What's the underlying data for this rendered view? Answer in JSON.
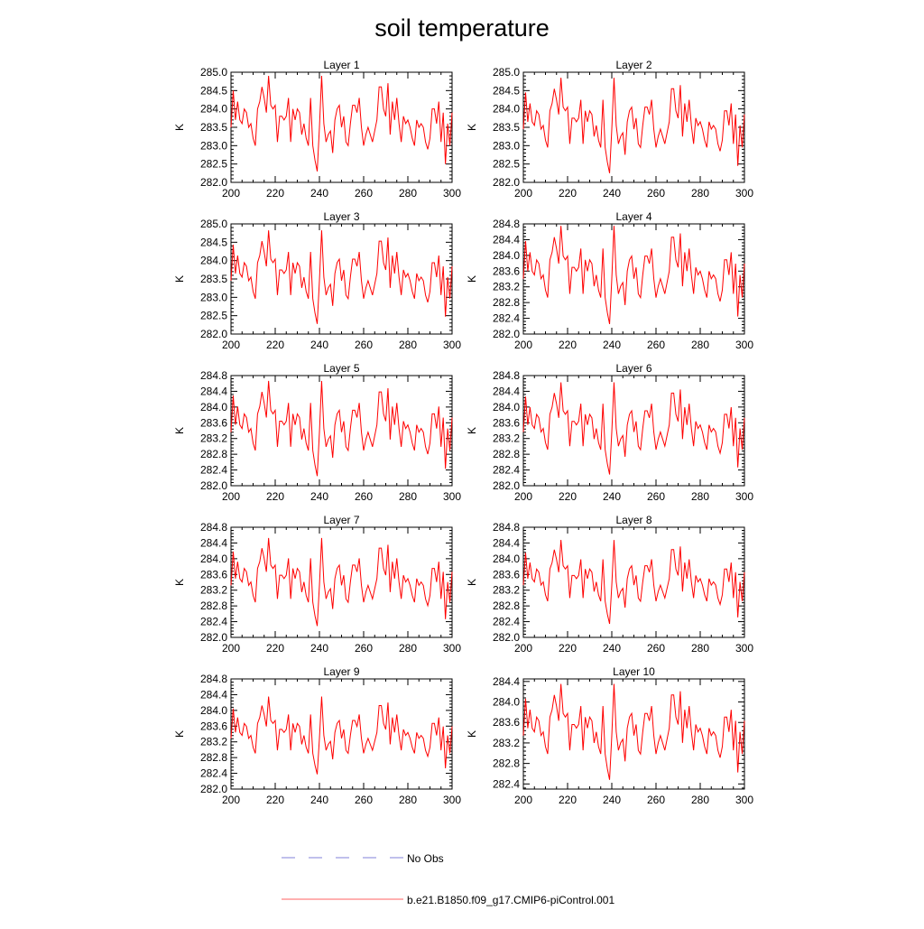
{
  "chart_data": {
    "type": "line",
    "title": "soil temperature",
    "xlabel": "",
    "ylabel": "K",
    "xlim": [
      200,
      300
    ],
    "x_ticks": [
      200,
      220,
      240,
      260,
      280,
      300
    ],
    "x_start": 200,
    "line_color": "#ff0000",
    "obs_color": "#8080d8",
    "base_series": [
      283.5,
      284.5,
      283.7,
      284.2,
      283.7,
      283.6,
      284.0,
      283.9,
      283.5,
      283.6,
      283.2,
      283.0,
      284.0,
      284.2,
      284.6,
      284.3,
      283.9,
      284.9,
      284.1,
      284.0,
      284.1,
      283.1,
      283.8,
      283.8,
      283.7,
      283.8,
      284.3,
      283.1,
      284.0,
      283.7,
      284.0,
      283.9,
      283.3,
      283.6,
      283.2,
      283.0,
      284.3,
      283.0,
      282.6,
      282.3,
      283.5,
      284.9,
      283.6,
      283.1,
      283.3,
      283.4,
      282.8,
      283.7,
      284.0,
      284.1,
      283.5,
      283.8,
      283.1,
      283.0,
      283.6,
      284.1,
      284.1,
      283.9,
      284.3,
      283.5,
      283.0,
      283.3,
      283.5,
      283.3,
      283.1,
      283.4,
      283.7,
      284.6,
      284.6,
      284.0,
      283.8,
      284.7,
      283.3,
      284.2,
      283.7,
      284.3,
      283.6,
      283.1,
      283.8,
      283.6,
      283.7,
      283.5,
      283.2,
      283.0,
      283.7,
      283.5,
      283.6,
      283.5,
      283.1,
      282.9,
      283.2,
      284.0,
      284.0,
      283.6,
      284.2,
      283.1,
      283.9,
      282.5,
      283.6,
      283.0,
      283.9
    ],
    "panels": [
      {
        "title": "Layer 1",
        "ylim": [
          282.0,
          285.0
        ],
        "y_ticks": [
          "282.0",
          "282.5",
          "283.0",
          "283.5",
          "284.0",
          "284.5",
          "285.0"
        ],
        "amplitude": 1.0,
        "shift": 0.0
      },
      {
        "title": "Layer 2",
        "ylim": [
          282.0,
          285.0
        ],
        "y_ticks": [
          "282.0",
          "282.5",
          "283.0",
          "283.5",
          "284.0",
          "284.5",
          "285.0"
        ],
        "amplitude": 1.0,
        "shift": -0.05
      },
      {
        "title": "Layer 3",
        "ylim": [
          282.0,
          285.0
        ],
        "y_ticks": [
          "282.0",
          "282.5",
          "283.0",
          "283.5",
          "284.0",
          "284.5",
          "285.0"
        ],
        "amplitude": 0.98,
        "shift": -0.05
      },
      {
        "title": "Layer 4",
        "ylim": [
          282.0,
          284.8
        ],
        "y_ticks": [
          "282.0",
          "282.4",
          "282.8",
          "283.2",
          "283.6",
          "284.0",
          "284.4",
          "284.8"
        ],
        "amplitude": 0.96,
        "shift": -0.1
      },
      {
        "title": "Layer 5",
        "ylim": [
          282.0,
          284.8
        ],
        "y_ticks": [
          "282.0",
          "282.4",
          "282.8",
          "283.2",
          "283.6",
          "284.0",
          "284.4",
          "284.8"
        ],
        "amplitude": 0.93,
        "shift": -0.15
      },
      {
        "title": "Layer 6",
        "ylim": [
          282.0,
          284.8
        ],
        "y_ticks": [
          "282.0",
          "282.4",
          "282.8",
          "283.2",
          "283.6",
          "284.0",
          "284.4",
          "284.8"
        ],
        "amplitude": 0.9,
        "shift": -0.15
      },
      {
        "title": "Layer 7",
        "ylim": [
          282.0,
          284.8
        ],
        "y_ticks": [
          "282.0",
          "282.4",
          "282.8",
          "283.2",
          "283.6",
          "284.0",
          "284.4",
          "284.8"
        ],
        "amplitude": 0.86,
        "shift": -0.2
      },
      {
        "title": "Layer 8",
        "ylim": [
          282.0,
          284.8
        ],
        "y_ticks": [
          "282.0",
          "282.4",
          "282.8",
          "283.2",
          "283.6",
          "284.0",
          "284.4",
          "284.8"
        ],
        "amplitude": 0.82,
        "shift": -0.2
      },
      {
        "title": "Layer 9",
        "ylim": [
          282.0,
          284.8
        ],
        "y_ticks": [
          "282.0",
          "282.4",
          "282.8",
          "283.2",
          "283.6",
          "284.0",
          "284.4",
          "284.8"
        ],
        "amplitude": 0.76,
        "shift": -0.25
      },
      {
        "title": "Layer 10",
        "ylim": [
          282.3,
          284.45
        ],
        "y_ticks": [
          "282.4",
          "282.8",
          "283.2",
          "283.6",
          "284.0",
          "284.4"
        ],
        "amplitude": 0.72,
        "shift": -0.2
      }
    ],
    "legend": [
      {
        "label": "No Obs",
        "style": "dashed",
        "color": "#8080d8"
      },
      {
        "label": "b.e21.B1850.f09_g17.CMIP6-piControl.001",
        "style": "solid",
        "color": "#ff6060"
      }
    ]
  }
}
